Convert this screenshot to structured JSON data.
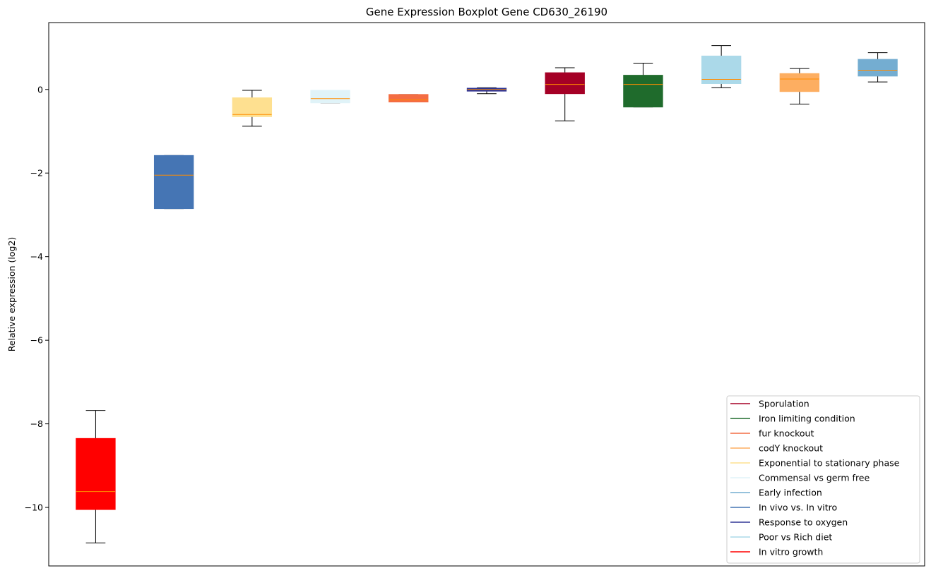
{
  "chart_data": {
    "type": "boxplot",
    "title": "Gene Expression Boxplot Gene CD630_26190",
    "xlabel": "",
    "ylabel": "Relative expression (log2)",
    "ylim": [
      -11.4,
      1.6
    ],
    "yticks": [
      0,
      -2,
      -4,
      -6,
      -8,
      -10
    ],
    "ytick_labels": [
      "0",
      "−2",
      "−4",
      "−6",
      "−8",
      "−10"
    ],
    "grid": false,
    "legend_position": "bottom-right",
    "median_color": "#ff8c00",
    "series": [
      {
        "name": "In vitro growth",
        "color": "#ff0000",
        "min": -10.85,
        "q1": -10.05,
        "median": -9.62,
        "q3": -8.35,
        "max": -7.68
      },
      {
        "name": "In vivo vs. In vitro",
        "color": "#4575b4",
        "min": -2.85,
        "q1": -2.85,
        "median": -2.05,
        "q3": -1.58,
        "max": -1.58
      },
      {
        "name": "Exponential to stationary phase",
        "color": "#fee090",
        "min": -0.88,
        "q1": -0.65,
        "median": -0.6,
        "q3": -0.2,
        "max": -0.02
      },
      {
        "name": "Commensal vs germ free",
        "color": "#e0f3f8",
        "min": -0.32,
        "q1": -0.32,
        "median": -0.22,
        "q3": -0.02,
        "max": -0.02
      },
      {
        "name": "fur knockout",
        "color": "#f46d43",
        "min": -0.3,
        "q1": -0.3,
        "median": -0.25,
        "q3": -0.12,
        "max": -0.12
      },
      {
        "name": "Response to oxygen",
        "color": "#313695",
        "min": -0.1,
        "q1": -0.04,
        "median": 0.0,
        "q3": 0.03,
        "max": 0.04
      },
      {
        "name": "Sporulation",
        "color": "#a50026",
        "min": -0.75,
        "q1": -0.1,
        "median": 0.12,
        "q3": 0.4,
        "max": 0.52
      },
      {
        "name": "Iron limiting condition",
        "color": "#1f6b2c",
        "min": -0.42,
        "q1": -0.42,
        "median": 0.12,
        "q3": 0.34,
        "max": 0.63
      },
      {
        "name": "Poor vs Rich diet",
        "color": "#abd9e9",
        "min": 0.04,
        "q1": 0.14,
        "median": 0.24,
        "q3": 0.8,
        "max": 1.05
      },
      {
        "name": "codY knockout",
        "color": "#fdae61",
        "min": -0.35,
        "q1": -0.05,
        "median": 0.25,
        "q3": 0.38,
        "max": 0.5
      },
      {
        "name": "Early infection",
        "color": "#74add1",
        "min": 0.18,
        "q1": 0.32,
        "median": 0.46,
        "q3": 0.72,
        "max": 0.88
      }
    ],
    "legend": [
      {
        "label": "Sporulation",
        "color": "#a50026"
      },
      {
        "label": "Iron limiting condition",
        "color": "#1f6b2c"
      },
      {
        "label": "fur knockout",
        "color": "#f46d43"
      },
      {
        "label": "codY knockout",
        "color": "#fdae61"
      },
      {
        "label": "Exponential to stationary phase",
        "color": "#fee090"
      },
      {
        "label": "Commensal vs germ free",
        "color": "#e0f3f8"
      },
      {
        "label": "Early infection",
        "color": "#74add1"
      },
      {
        "label": "In vivo vs. In vitro",
        "color": "#4575b4"
      },
      {
        "label": "Response to oxygen",
        "color": "#313695"
      },
      {
        "label": "Poor vs Rich diet",
        "color": "#abd9e9"
      },
      {
        "label": "In vitro growth",
        "color": "#ff0000"
      }
    ]
  }
}
